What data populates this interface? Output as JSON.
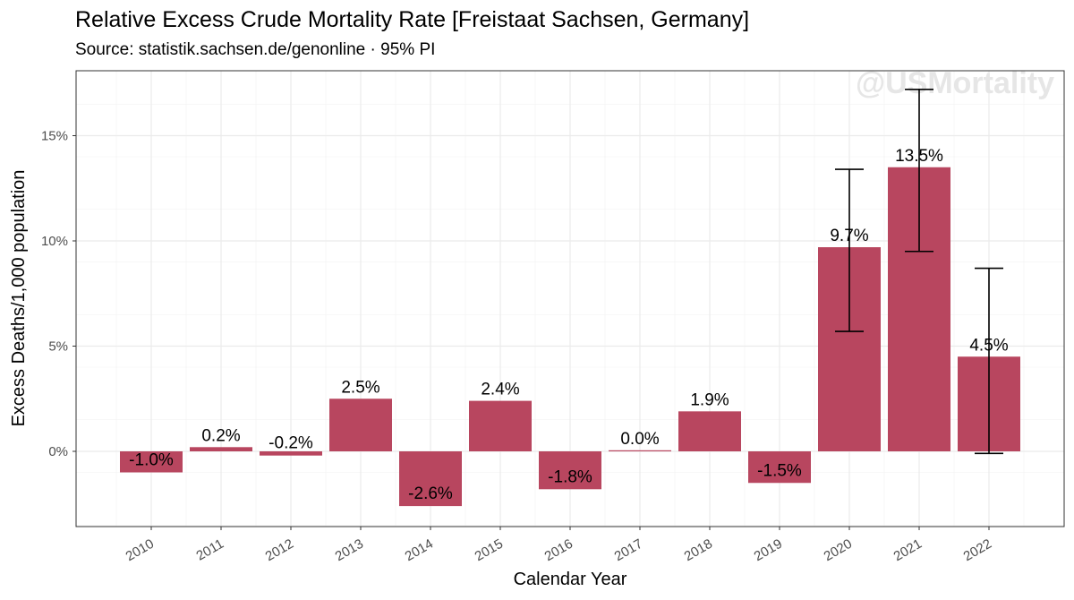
{
  "chart_data": {
    "type": "bar",
    "title": "Relative Excess Crude Mortality Rate [Freistaat Sachsen, Germany]",
    "subtitle": "Source: statistik.sachsen.de/genonline · 95% PI",
    "xlabel": "Calendar Year",
    "ylabel": "Excess Deaths/1,000 population",
    "watermark": "@USMortality",
    "categories": [
      "2010",
      "2011",
      "2012",
      "2013",
      "2014",
      "2015",
      "2016",
      "2017",
      "2018",
      "2019",
      "2020",
      "2021",
      "2022"
    ],
    "values": [
      -1.0,
      0.2,
      -0.2,
      2.5,
      -2.6,
      2.4,
      -1.8,
      0.05,
      1.9,
      -1.5,
      9.7,
      13.5,
      4.5
    ],
    "labels": [
      "-1.0%",
      "0.2%",
      "-0.2%",
      "2.5%",
      "-2.6%",
      "2.4%",
      "-1.8%",
      "0.0%",
      "1.9%",
      "-1.5%",
      "9.7%",
      "13.5%",
      "4.5%"
    ],
    "error_bars": [
      {
        "category": "2020",
        "low": 5.7,
        "high": 13.4
      },
      {
        "category": "2021",
        "low": 9.5,
        "high": 17.2
      },
      {
        "category": "2022",
        "low": -0.1,
        "high": 8.7
      }
    ],
    "y_ticks": [
      0,
      5,
      10,
      15
    ],
    "y_tick_labels": [
      "0%",
      "5%",
      "10%",
      "15%"
    ],
    "ylim": [
      -3.5,
      18.0
    ],
    "grid": true,
    "bar_color": "#b8465f"
  }
}
